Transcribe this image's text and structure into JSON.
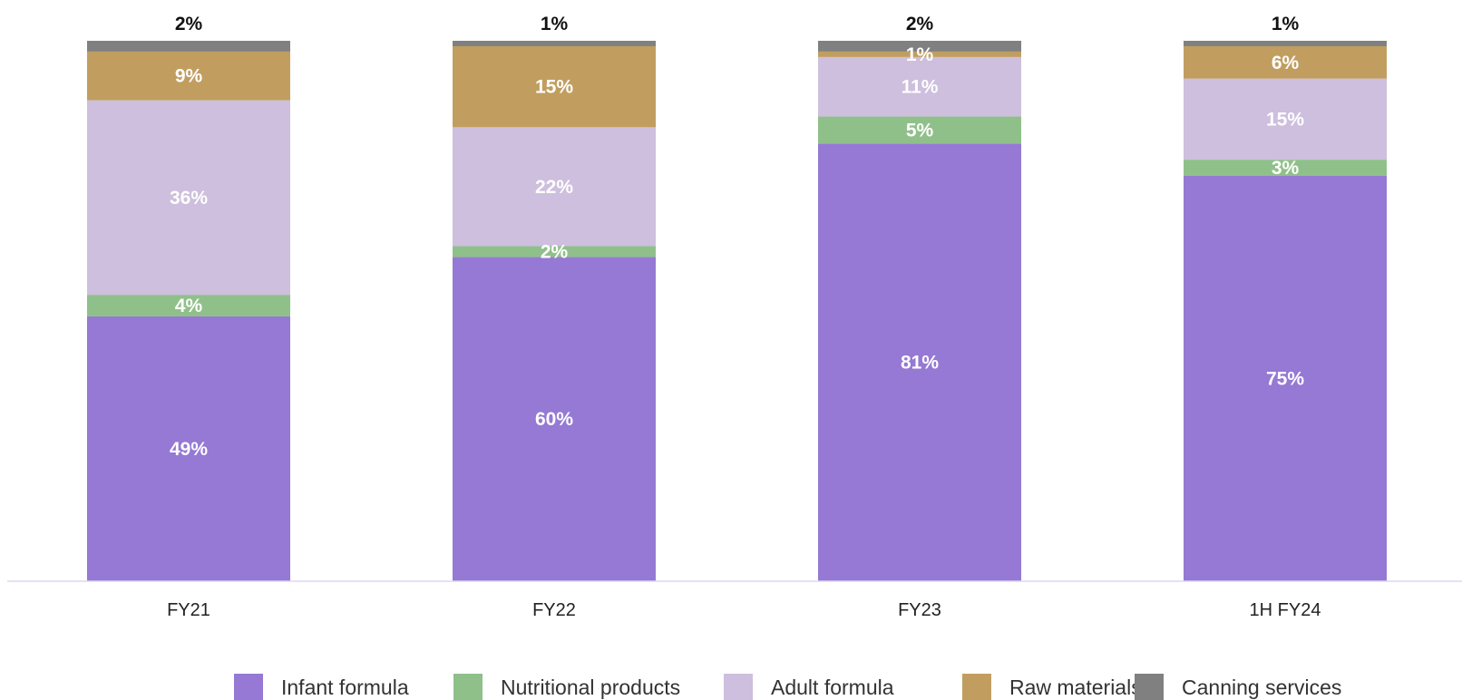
{
  "chart_data": {
    "type": "bar",
    "stacked": true,
    "percent_stacked": true,
    "categories": [
      "FY21",
      "FY22",
      "FY23",
      "1H FY24"
    ],
    "series": [
      {
        "name": "Infant formula",
        "color": "#9579d4",
        "values": [
          49,
          60,
          81,
          75
        ],
        "labels": [
          "49%",
          "60%",
          "81%",
          "75%"
        ]
      },
      {
        "name": "Nutritional products",
        "color": "#90c08a",
        "values": [
          4,
          2,
          5,
          3
        ],
        "labels": [
          "4%",
          "2%",
          "5%",
          "3%"
        ]
      },
      {
        "name": "Adult formula",
        "color": "#cdbfdd",
        "values": [
          36,
          22,
          11,
          15
        ],
        "labels": [
          "36%",
          "22%",
          "11%",
          "15%"
        ]
      },
      {
        "name": "Raw materials",
        "color": "#c19e60",
        "values": [
          9,
          15,
          1,
          6
        ],
        "labels": [
          "9%",
          "15%",
          "1%",
          "6%"
        ]
      },
      {
        "name": "Canning services",
        "color": "#808080",
        "values": [
          2,
          1,
          2,
          1
        ],
        "labels": [
          "2%",
          "1%",
          "2%",
          "1%"
        ]
      }
    ],
    "title": "",
    "xlabel": "",
    "ylabel": "",
    "ylim": [
      0,
      100
    ],
    "grid": false,
    "legend_position": "bottom"
  }
}
